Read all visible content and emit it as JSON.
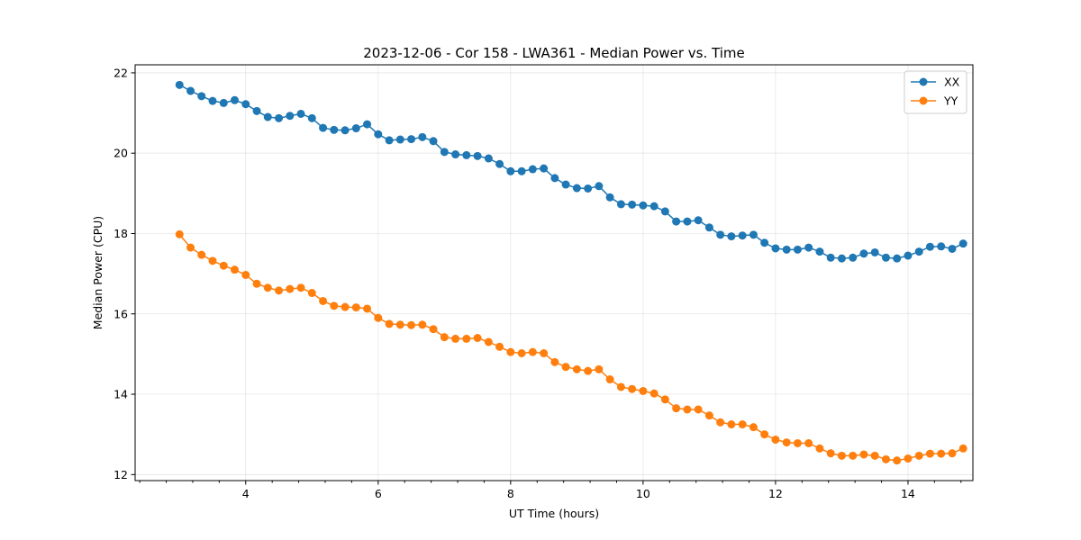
{
  "chart_data": {
    "type": "line",
    "title": "2023-12-06 - Cor 158 - LWA361 - Median Power vs. Time",
    "xlabel": "UT Time (hours)",
    "ylabel": "Median Power (CPU)",
    "xlim": [
      2.33,
      14.98
    ],
    "ylim": [
      11.85,
      22.2
    ],
    "xticks": [
      4,
      6,
      8,
      10,
      12,
      14
    ],
    "xtick_labels": [
      "4",
      "6",
      "8",
      "10",
      "12",
      "14"
    ],
    "xminor_step": 0.4,
    "yticks": [
      12,
      14,
      16,
      18,
      20,
      22
    ],
    "ytick_labels": [
      "12",
      "14",
      "16",
      "18",
      "20",
      "22"
    ],
    "grid": true,
    "legend_position": "top-right",
    "x": [
      3.0,
      3.167,
      3.333,
      3.5,
      3.667,
      3.833,
      4.0,
      4.167,
      4.333,
      4.5,
      4.667,
      4.833,
      5.0,
      5.167,
      5.333,
      5.5,
      5.667,
      5.833,
      6.0,
      6.167,
      6.333,
      6.5,
      6.667,
      6.833,
      7.0,
      7.167,
      7.333,
      7.5,
      7.667,
      7.833,
      8.0,
      8.167,
      8.333,
      8.5,
      8.667,
      8.833,
      9.0,
      9.167,
      9.333,
      9.5,
      9.667,
      9.833,
      10.0,
      10.167,
      10.333,
      10.5,
      10.667,
      10.833,
      11.0,
      11.167,
      11.333,
      11.5,
      11.667,
      11.833,
      12.0,
      12.167,
      12.333,
      12.5,
      12.667,
      12.833,
      13.0,
      13.167,
      13.333,
      13.5,
      13.667,
      13.833,
      14.0,
      14.167,
      14.333,
      14.5,
      14.667,
      14.833
    ],
    "series": [
      {
        "name": "XX",
        "color": "#1f77b4",
        "values": [
          21.7,
          21.55,
          21.42,
          21.3,
          21.25,
          21.32,
          21.22,
          21.05,
          20.9,
          20.87,
          20.93,
          20.98,
          20.87,
          20.63,
          20.58,
          20.57,
          20.62,
          20.72,
          20.47,
          20.32,
          20.34,
          20.35,
          20.4,
          20.3,
          20.03,
          19.97,
          19.95,
          19.93,
          19.87,
          19.73,
          19.55,
          19.55,
          19.6,
          19.62,
          19.38,
          19.22,
          19.13,
          19.12,
          19.18,
          18.9,
          18.73,
          18.72,
          18.7,
          18.68,
          18.55,
          18.3,
          18.3,
          18.33,
          18.15,
          17.97,
          17.93,
          17.95,
          17.97,
          17.77,
          17.63,
          17.6,
          17.6,
          17.65,
          17.55,
          17.4,
          17.38,
          17.4,
          17.5,
          17.53,
          17.4,
          17.38,
          17.45,
          17.55,
          17.67,
          17.68,
          17.62,
          17.75
        ]
      },
      {
        "name": "YY",
        "color": "#ff7f0e",
        "values": [
          17.98,
          17.65,
          17.47,
          17.32,
          17.2,
          17.1,
          16.97,
          16.75,
          16.65,
          16.58,
          16.62,
          16.65,
          16.52,
          16.32,
          16.2,
          16.17,
          16.16,
          16.13,
          15.9,
          15.75,
          15.73,
          15.72,
          15.73,
          15.62,
          15.42,
          15.38,
          15.38,
          15.4,
          15.3,
          15.18,
          15.05,
          15.02,
          15.05,
          15.02,
          14.8,
          14.68,
          14.62,
          14.58,
          14.62,
          14.37,
          14.18,
          14.13,
          14.08,
          14.02,
          13.87,
          13.65,
          13.62,
          13.62,
          13.47,
          13.3,
          13.25,
          13.25,
          13.18,
          13.0,
          12.87,
          12.8,
          12.78,
          12.78,
          12.65,
          12.53,
          12.47,
          12.47,
          12.5,
          12.47,
          12.38,
          12.35,
          12.4,
          12.47,
          12.52,
          12.52,
          12.53,
          12.65
        ]
      }
    ]
  }
}
